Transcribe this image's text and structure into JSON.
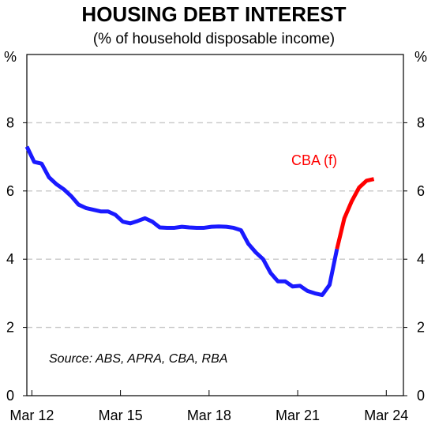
{
  "chart_data": {
    "type": "line",
    "title": "HOUSING DEBT INTEREST",
    "subtitle": "(% of household disposable income)",
    "y_unit": "%",
    "ylim": [
      0,
      10
    ],
    "yticks": [
      "0",
      "2",
      "4",
      "6",
      "8"
    ],
    "xlim": [
      2012.0,
      2024.75
    ],
    "xticks": [
      {
        "x": 2012.17,
        "label": "Mar 12"
      },
      {
        "x": 2015.17,
        "label": "Mar 15"
      },
      {
        "x": 2018.17,
        "label": "Mar 18"
      },
      {
        "x": 2021.17,
        "label": "Mar 21"
      },
      {
        "x": 2024.17,
        "label": "Mar 24"
      }
    ],
    "grid": true,
    "source": "Source: ABS, APRA, CBA, RBA",
    "series": [
      {
        "name": "",
        "color": "#1a1aff",
        "points": [
          [
            2012.0,
            7.3
          ],
          [
            2012.25,
            6.85
          ],
          [
            2012.5,
            6.8
          ],
          [
            2012.75,
            6.4
          ],
          [
            2013.0,
            6.2
          ],
          [
            2013.25,
            6.05
          ],
          [
            2013.5,
            5.85
          ],
          [
            2013.75,
            5.6
          ],
          [
            2014.0,
            5.5
          ],
          [
            2014.25,
            5.45
          ],
          [
            2014.5,
            5.4
          ],
          [
            2014.75,
            5.4
          ],
          [
            2015.0,
            5.3
          ],
          [
            2015.25,
            5.1
          ],
          [
            2015.5,
            5.05
          ],
          [
            2015.75,
            5.12
          ],
          [
            2016.0,
            5.2
          ],
          [
            2016.25,
            5.1
          ],
          [
            2016.5,
            4.93
          ],
          [
            2016.75,
            4.92
          ],
          [
            2017.0,
            4.92
          ],
          [
            2017.25,
            4.95
          ],
          [
            2017.5,
            4.93
          ],
          [
            2017.75,
            4.92
          ],
          [
            2018.0,
            4.92
          ],
          [
            2018.25,
            4.95
          ],
          [
            2018.5,
            4.96
          ],
          [
            2018.75,
            4.95
          ],
          [
            2019.0,
            4.92
          ],
          [
            2019.25,
            4.85
          ],
          [
            2019.5,
            4.45
          ],
          [
            2019.75,
            4.2
          ],
          [
            2020.0,
            4.0
          ],
          [
            2020.25,
            3.6
          ],
          [
            2020.5,
            3.35
          ],
          [
            2020.75,
            3.35
          ],
          [
            2021.0,
            3.2
          ],
          [
            2021.25,
            3.22
          ],
          [
            2021.5,
            3.07
          ],
          [
            2021.75,
            3.0
          ],
          [
            2022.0,
            2.95
          ],
          [
            2022.25,
            3.25
          ],
          [
            2022.5,
            4.3
          ]
        ]
      },
      {
        "name": "CBA (f)",
        "color": "#ff0000",
        "points": [
          [
            2022.5,
            4.3
          ],
          [
            2022.75,
            5.2
          ],
          [
            2023.0,
            5.7
          ],
          [
            2023.25,
            6.1
          ],
          [
            2023.5,
            6.3
          ],
          [
            2023.75,
            6.35
          ]
        ]
      }
    ]
  }
}
